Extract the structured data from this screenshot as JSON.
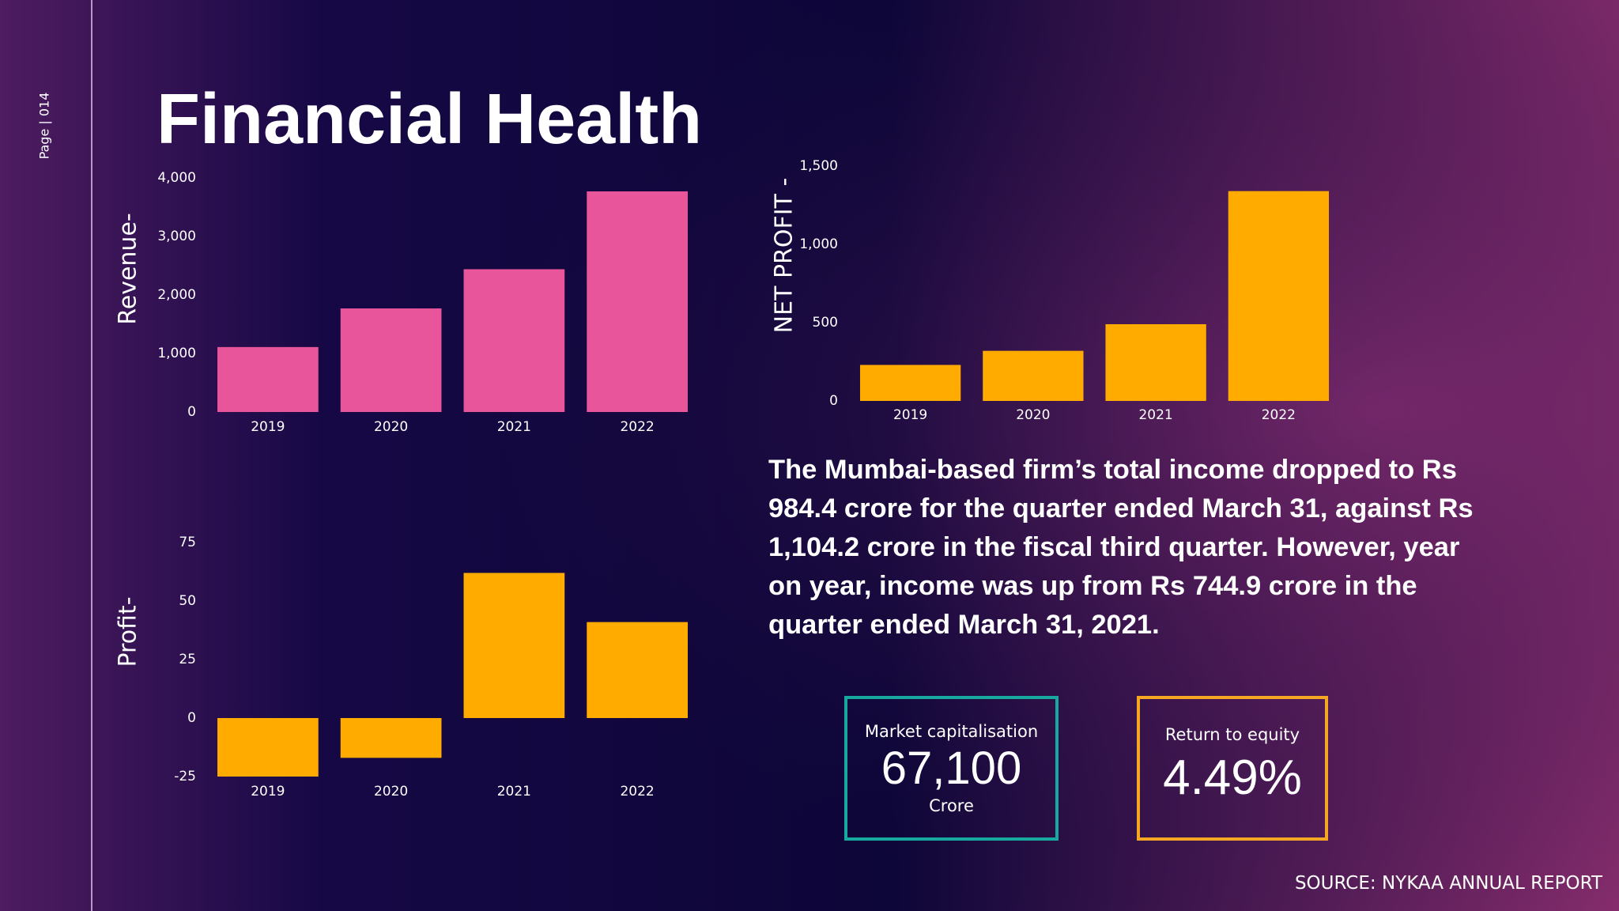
{
  "page": {
    "label": "Page | 014",
    "title": "Financial Health",
    "paragraph": "The Mumbai-based firm’s total income dropped to Rs 984.4 crore for the quarter ended March 31, against Rs 1,104.2 crore in the fiscal third quarter. However, year on year, income was up from Rs 744.9 crore in the quarter ended March 31, 2021.",
    "kpis": [
      {
        "label": "Market capitalisation",
        "value": "67,100",
        "unit": "Crore"
      },
      {
        "label": "Return to equity",
        "value": "4.49%"
      }
    ],
    "source": "SOURCE: NYKAA ANNUAL REPORT"
  },
  "chart_data": [
    {
      "type": "bar",
      "y_label": "Revenue-",
      "categories": [
        "2019",
        "2020",
        "2021",
        "2022"
      ],
      "values": [
        1110,
        1770,
        2440,
        3770
      ],
      "color": "#e8559a",
      "ylim": [
        0,
        4000
      ],
      "yticks": [
        0,
        {
          "value": 1000,
          "label": "1,000"
        },
        {
          "value": 2000,
          "label": "2,000"
        },
        {
          "value": 3000,
          "label": "3,000"
        },
        {
          "value": 4000,
          "label": "4,000"
        }
      ],
      "grid": false
    },
    {
      "type": "bar",
      "y_label": "NET PROFIT -",
      "categories": [
        "2019",
        "2020",
        "2021",
        "2022"
      ],
      "values": [
        230,
        320,
        490,
        1340
      ],
      "color": "#ffab00",
      "ylim": [
        0,
        1500
      ],
      "yticks": [
        0,
        500,
        {
          "value": 1000,
          "label": "1,000"
        },
        {
          "value": 1500,
          "label": "1,500"
        }
      ],
      "grid": false
    },
    {
      "type": "bar",
      "y_label": "Profit-",
      "categories": [
        "2019",
        "2020",
        "2021",
        "2022"
      ],
      "values": [
        -25,
        -17,
        62,
        41
      ],
      "color": "#ffab00",
      "ylim": [
        -25,
        75
      ],
      "yticks": [
        -25,
        0,
        25,
        50,
        75
      ],
      "grid": false
    }
  ]
}
